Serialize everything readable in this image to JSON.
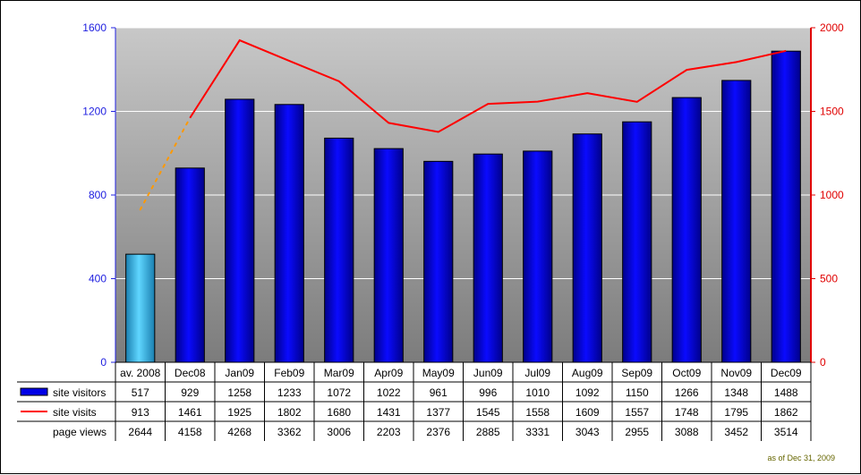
{
  "chart_data": {
    "type": "bar",
    "categories": [
      "av. 2008",
      "Dec08",
      "Jan09",
      "Feb09",
      "Mar09",
      "Apr09",
      "May09",
      "Jun09",
      "Jul09",
      "Aug09",
      "Sep09",
      "Oct09",
      "Nov09",
      "Dec09"
    ],
    "series": [
      {
        "name": "site visitors",
        "type": "bar",
        "axis": "left",
        "values": [
          517,
          929,
          1258,
          1233,
          1072,
          1022,
          961,
          996,
          1010,
          1092,
          1150,
          1266,
          1348,
          1488
        ],
        "color": "#0000e6",
        "highlight_color": "#3ab4e6"
      },
      {
        "name": "site visits",
        "type": "line",
        "axis": "right",
        "values": [
          913,
          1461,
          1925,
          1802,
          1680,
          1431,
          1377,
          1545,
          1558,
          1609,
          1557,
          1748,
          1795,
          1862
        ],
        "color": "#ff0000",
        "first_segment_color": "#ff9900"
      },
      {
        "name": "page views",
        "type": "table-only",
        "values": [
          2644,
          4158,
          4268,
          3362,
          3006,
          2203,
          2376,
          2885,
          3331,
          3043,
          2955,
          3088,
          3452,
          3514
        ]
      }
    ],
    "y_left": {
      "range": [
        0,
        1600
      ],
      "ticks": [
        0,
        400,
        800,
        1200,
        1600
      ],
      "color": "#2020e0"
    },
    "y_right": {
      "range": [
        0,
        2000
      ],
      "ticks": [
        0,
        500,
        1000,
        1500,
        2000
      ],
      "color": "#e00000"
    },
    "grid": true,
    "legend": "data-table"
  },
  "footnote": "as of Dec 31, 2009"
}
